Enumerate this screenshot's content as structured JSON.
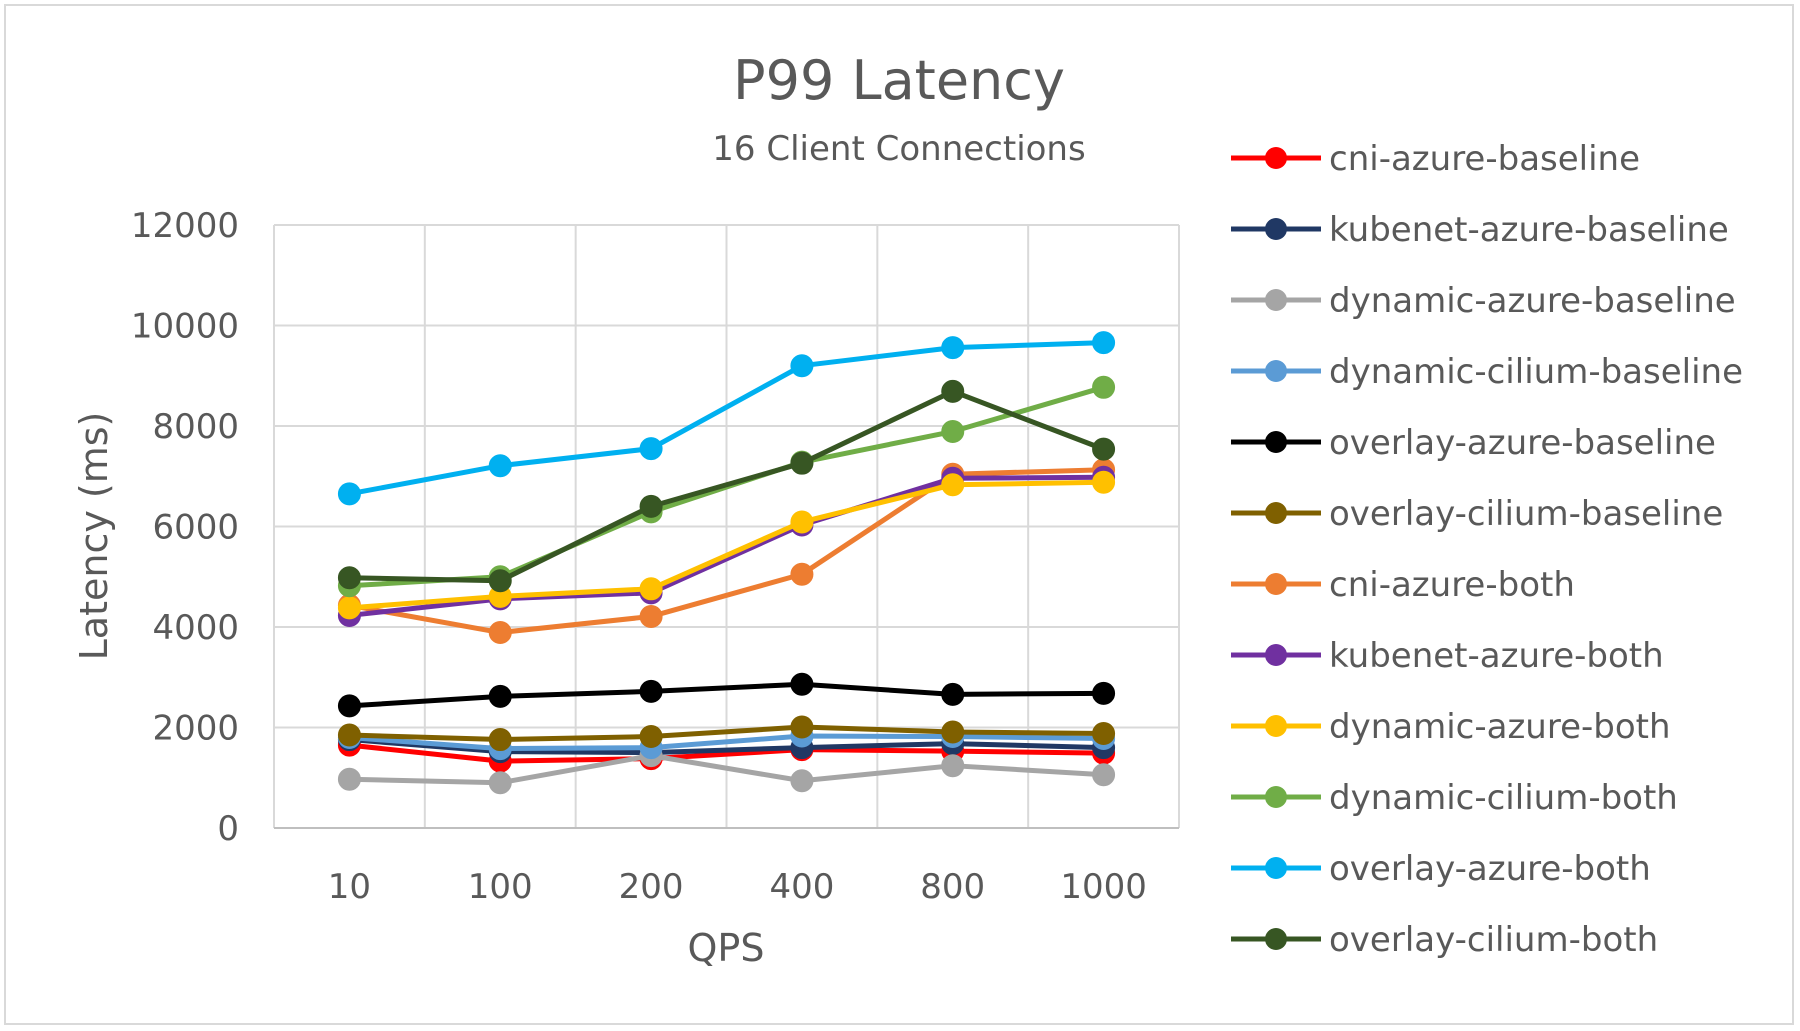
{
  "chart_data": {
    "type": "line",
    "title": "P99 Latency",
    "subtitle": "16 Client Connections",
    "xlabel": "QPS",
    "ylabel": "Latency (ms)",
    "categories": [
      "10",
      "100",
      "200",
      "400",
      "800",
      "1000"
    ],
    "ylim": [
      0,
      12000
    ],
    "yticks": [
      0,
      2000,
      4000,
      6000,
      8000,
      10000,
      12000
    ],
    "grid": true,
    "legend_position": "right",
    "series": [
      {
        "name": "cni-azure-baseline",
        "color": "#ff0000",
        "values": [
          1650,
          1330,
          1380,
          1560,
          1530,
          1490
        ]
      },
      {
        "name": "kubenet-azure-baseline",
        "color": "#203864",
        "values": [
          1760,
          1520,
          1500,
          1600,
          1680,
          1600
        ]
      },
      {
        "name": "dynamic-azure-baseline",
        "color": "#a5a5a5",
        "values": [
          970,
          900,
          1440,
          940,
          1240,
          1060
        ]
      },
      {
        "name": "dynamic-cilium-baseline",
        "color": "#5b9bd5",
        "values": [
          1800,
          1580,
          1600,
          1830,
          1820,
          1780
        ]
      },
      {
        "name": "overlay-azure-baseline",
        "color": "#000000",
        "values": [
          2430,
          2620,
          2720,
          2860,
          2660,
          2680
        ]
      },
      {
        "name": "overlay-cilium-baseline",
        "color": "#7f6000",
        "values": [
          1850,
          1760,
          1820,
          2010,
          1910,
          1880
        ]
      },
      {
        "name": "cni-azure-both",
        "color": "#ed7d31",
        "values": [
          4430,
          3890,
          4210,
          5050,
          7040,
          7130
        ]
      },
      {
        "name": "kubenet-azure-both",
        "color": "#7030a0",
        "values": [
          4230,
          4560,
          4680,
          6030,
          6960,
          6980
        ]
      },
      {
        "name": "dynamic-azure-both",
        "color": "#ffc000",
        "values": [
          4380,
          4610,
          4760,
          6090,
          6830,
          6880
        ]
      },
      {
        "name": "dynamic-cilium-both",
        "color": "#70ad47",
        "values": [
          4820,
          5000,
          6290,
          7280,
          7890,
          8770
        ]
      },
      {
        "name": "overlay-azure-both",
        "color": "#00b0f0",
        "values": [
          6650,
          7210,
          7550,
          9200,
          9560,
          9660
        ]
      },
      {
        "name": "overlay-cilium-both",
        "color": "#375623",
        "values": [
          4980,
          4920,
          6400,
          7260,
          8690,
          7540
        ]
      }
    ]
  }
}
